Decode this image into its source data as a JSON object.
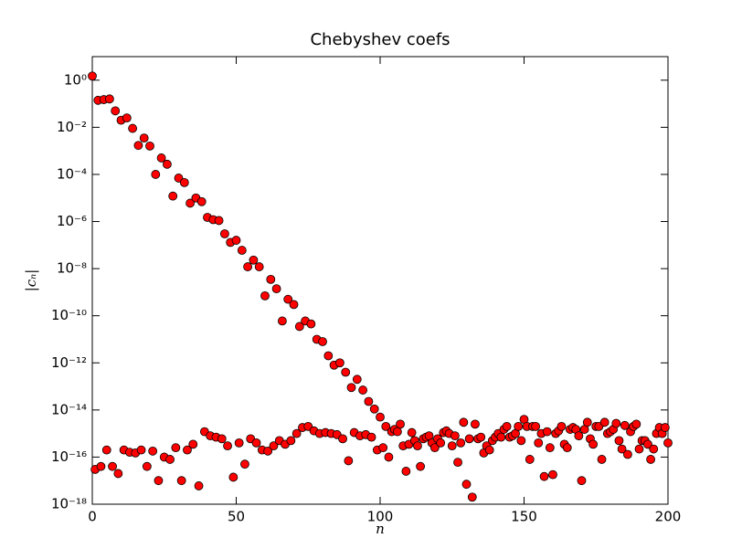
{
  "chart_data": {
    "type": "scatter",
    "title": "Chebyshev coefs",
    "x_label": "n",
    "y_label": "|cₙ|",
    "color": "#ff0000",
    "edge_color": "#000000",
    "log_y": true,
    "grid": false,
    "xlim": [
      0,
      200
    ],
    "xticks": [
      0,
      50,
      100,
      150,
      200
    ],
    "ylim": [
      1e-18,
      10
    ],
    "yticks": [
      {
        "value": 1e-18,
        "label": "10⁻¹⁸"
      },
      {
        "value": 1e-16,
        "label": "10⁻¹⁶"
      },
      {
        "value": 1e-14,
        "label": "10⁻¹⁴"
      },
      {
        "value": 1e-12,
        "label": "10⁻¹²"
      },
      {
        "value": 1e-10,
        "label": "10⁻¹⁰"
      },
      {
        "value": 1e-08,
        "label": "10⁻⁸"
      },
      {
        "value": 1e-06,
        "label": "10⁻⁶"
      },
      {
        "value": 0.0001,
        "label": "10⁻⁴"
      },
      {
        "value": 0.01,
        "label": "10⁻²"
      },
      {
        "value": 1,
        "label": "10⁰"
      }
    ],
    "x": [
      0,
      1,
      2,
      3,
      4,
      5,
      6,
      7,
      8,
      9,
      10,
      11,
      12,
      13,
      14,
      15,
      16,
      17,
      18,
      19,
      20,
      21,
      22,
      23,
      24,
      25,
      26,
      27,
      28,
      29,
      30,
      31,
      32,
      33,
      34,
      35,
      36,
      37,
      38,
      39,
      40,
      41,
      42,
      43,
      44,
      45,
      46,
      47,
      48,
      49,
      50,
      51,
      52,
      53,
      54,
      55,
      56,
      57,
      58,
      59,
      60,
      61,
      62,
      63,
      64,
      65,
      66,
      67,
      68,
      69,
      70,
      71,
      72,
      73,
      74,
      75,
      76,
      77,
      78,
      79,
      80,
      81,
      82,
      83,
      84,
      85,
      86,
      87,
      88,
      89,
      90,
      91,
      92,
      93,
      94,
      95,
      96,
      97,
      98,
      99,
      100,
      101,
      102,
      103,
      104,
      105,
      106,
      107,
      108,
      109,
      110,
      111,
      112,
      113,
      114,
      115,
      116,
      117,
      118,
      119,
      120,
      121,
      122,
      123,
      124,
      125,
      126,
      127,
      128,
      129,
      130,
      131,
      132,
      133,
      134,
      135,
      136,
      137,
      138,
      139,
      140,
      141,
      142,
      143,
      144,
      145,
      146,
      147,
      148,
      149,
      150,
      151,
      152,
      153,
      154,
      155,
      156,
      157,
      158,
      159,
      160,
      161,
      162,
      163,
      164,
      165,
      166,
      167,
      168,
      169,
      170,
      171,
      172,
      173,
      174,
      175,
      176,
      177,
      178,
      179,
      180,
      181,
      182,
      183,
      184,
      185,
      186,
      187,
      188,
      189,
      190,
      191,
      192,
      193,
      194,
      195,
      196,
      197,
      198,
      199,
      200
    ],
    "values": [
      1.5,
      3e-17,
      0.14,
      4e-17,
      0.15,
      2e-16,
      0.16,
      4e-17,
      0.05,
      2e-17,
      0.02,
      2e-16,
      0.025,
      1.6e-16,
      0.009,
      1.5e-16,
      0.0017,
      2e-16,
      0.0035,
      4e-17,
      0.0016,
      1.8e-16,
      0.0001,
      1e-17,
      0.0005,
      1e-16,
      0.00027,
      8e-17,
      1.2e-05,
      2.5e-16,
      7e-05,
      1e-17,
      4.5e-05,
      2e-16,
      6e-06,
      3.5e-16,
      1e-05,
      6e-18,
      7e-06,
      1.2e-15,
      1.5e-06,
      8e-16,
      1.2e-06,
      7e-16,
      1.1e-06,
      6e-16,
      3e-07,
      3e-16,
      1.3e-07,
      1.4e-17,
      1.6e-07,
      4e-16,
      6e-08,
      5e-17,
      1.2e-08,
      6e-16,
      2.3e-08,
      4e-16,
      1.2e-08,
      2e-16,
      7e-10,
      1.8e-16,
      3.5e-09,
      3e-16,
      1.4e-09,
      5e-16,
      6e-11,
      3.5e-16,
      5e-10,
      5e-16,
      3e-10,
      1e-15,
      3.5e-11,
      1.8e-15,
      6e-11,
      2e-15,
      4.5e-11,
      1.3e-15,
      1e-11,
      1e-15,
      8e-12,
      1.1e-15,
      2e-12,
      1e-15,
      8e-13,
      9e-16,
      1e-12,
      6e-16,
      4e-13,
      7e-17,
      9e-14,
      1.1e-15,
      2e-13,
      8e-16,
      7e-14,
      9e-16,
      2.3e-14,
      7e-16,
      1.1e-14,
      2e-16,
      5e-15,
      2.5e-16,
      2e-15,
      1e-16,
      1.2e-15,
      1.5e-15,
      1.2e-15,
      2.5e-15,
      3e-16,
      2.5e-17,
      3.5e-16,
      1.1e-15,
      5e-16,
      3e-16,
      4e-17,
      6e-16,
      7e-16,
      8e-16,
      4e-16,
      2.5e-16,
      6e-16,
      4e-16,
      1.1e-15,
      1.3e-15,
      1e-15,
      3e-16,
      8e-16,
      6e-17,
      4e-16,
      3e-15,
      7e-18,
      6e-16,
      2e-18,
      2.5e-15,
      6e-16,
      7e-16,
      1.5e-16,
      3e-16,
      2e-16,
      5e-16,
      7e-16,
      1e-15,
      7e-16,
      1.5e-15,
      2e-15,
      7e-16,
      8e-16,
      1e-15,
      2e-15,
      5e-16,
      4e-15,
      2e-15,
      8e-17,
      2e-15,
      2e-15,
      4e-16,
      1e-15,
      1.5e-17,
      1.2e-15,
      2.5e-16,
      1.8e-17,
      1e-15,
      1.3e-15,
      2e-15,
      3.5e-16,
      2.5e-16,
      1.5e-15,
      1.8e-15,
      1.5e-15,
      8e-16,
      1e-17,
      1.5e-15,
      3e-15,
      6e-16,
      3.5e-16,
      2e-15,
      2e-15,
      8e-17,
      3e-15,
      1e-15,
      1.2e-15,
      1.5e-15,
      2.7e-15,
      5e-16,
      2.2e-16,
      2.2e-15,
      1.3e-16,
      1.2e-15,
      2e-15,
      2.5e-15,
      2.2e-16,
      5e-16,
      5e-16,
      3.5e-16,
      8e-17,
      2.2e-16,
      1e-15,
      1.8e-15,
      1e-15,
      1.8e-15,
      4e-16
    ]
  }
}
